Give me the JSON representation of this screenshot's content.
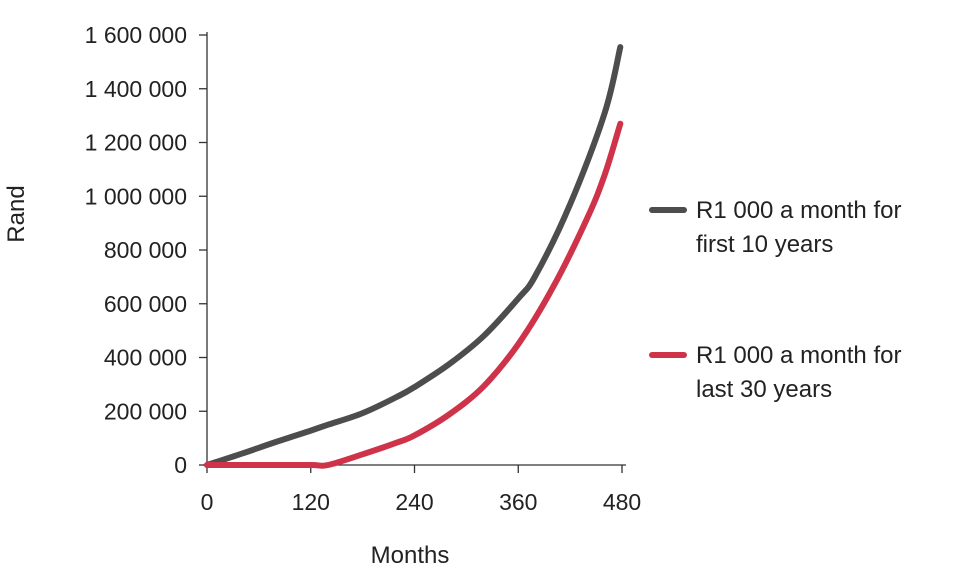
{
  "chart_data": {
    "type": "line",
    "xlabel": "Months",
    "ylabel": "Rand",
    "xlim": [
      0,
      480
    ],
    "ylim": [
      0,
      1600000
    ],
    "x_ticks": [
      {
        "value": 0,
        "label": "0"
      },
      {
        "value": 120,
        "label": "120"
      },
      {
        "value": 240,
        "label": "240"
      },
      {
        "value": 360,
        "label": "360"
      },
      {
        "value": 480,
        "label": "480"
      }
    ],
    "y_ticks": [
      {
        "value": 0,
        "label": "0"
      },
      {
        "value": 200000,
        "label": "200 000"
      },
      {
        "value": 400000,
        "label": "400 000"
      },
      {
        "value": 600000,
        "label": "600 000"
      },
      {
        "value": 800000,
        "label": "800 000"
      },
      {
        "value": 1000000,
        "label": "1 000 000"
      },
      {
        "value": 1200000,
        "label": "1 200 000"
      },
      {
        "value": 1400000,
        "label": "1 400 000"
      },
      {
        "value": 1600000,
        "label": "1 600 000"
      }
    ],
    "grid": false,
    "legend_position": "right",
    "series": [
      {
        "name": "R1 000 a month for first 10 years",
        "legend_lines": [
          "R1 000 a month for",
          "first 10 years"
        ],
        "color": "#4d4d4d",
        "points": [
          [
            0,
            0
          ],
          [
            40,
            42000
          ],
          [
            80,
            86000
          ],
          [
            120,
            128000
          ],
          [
            140,
            150000
          ],
          [
            180,
            193000
          ],
          [
            220,
            254000
          ],
          [
            240,
            290000
          ],
          [
            280,
            375000
          ],
          [
            320,
            480000
          ],
          [
            360,
            620000
          ],
          [
            380,
            705000
          ],
          [
            420,
            970000
          ],
          [
            460,
            1310000
          ],
          [
            478,
            1555000
          ]
        ]
      },
      {
        "name": "R1 000 a month for last 30 years",
        "legend_lines": [
          "R1 000 a month for",
          "last 30 years"
        ],
        "color": "#cf3349",
        "points": [
          [
            0,
            0
          ],
          [
            60,
            0
          ],
          [
            120,
            0
          ],
          [
            140,
            0
          ],
          [
            180,
            40000
          ],
          [
            220,
            84000
          ],
          [
            240,
            110000
          ],
          [
            280,
            188000
          ],
          [
            320,
            293000
          ],
          [
            360,
            450000
          ],
          [
            400,
            660000
          ],
          [
            440,
            920000
          ],
          [
            460,
            1080000
          ],
          [
            478,
            1270000
          ]
        ]
      }
    ]
  }
}
